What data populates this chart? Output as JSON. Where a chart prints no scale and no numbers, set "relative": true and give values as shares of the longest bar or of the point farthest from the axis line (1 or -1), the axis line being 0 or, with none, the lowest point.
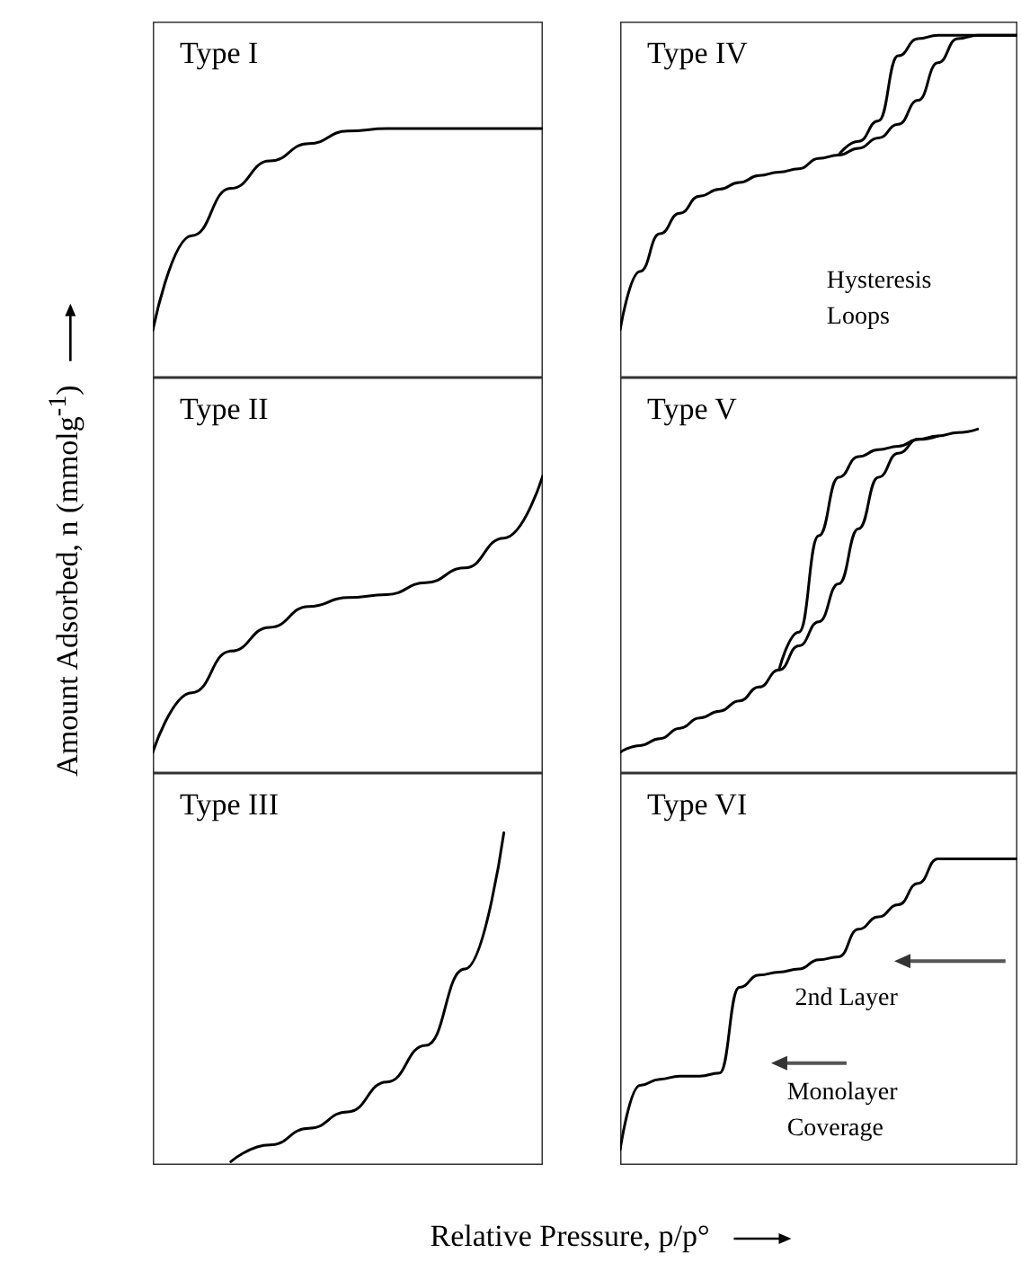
{
  "chart_data": [
    {
      "type": "line",
      "title": "Type I",
      "ylabel": "Amount Adsorbed, n (mmolg$^{-1}$)",
      "relative": true,
      "categories": [
        null,
        null,
        null,
        null,
        null,
        null,
        null,
        null,
        null,
        null,
        null
      ],
      "series": [
        {
          "color": "#000000",
          "values": [
            0.19,
            0.57,
            0.76,
            0.87,
            0.94,
            0.99,
            1,
            1,
            1,
            1,
            1
          ]
        }
      ]
    },
    {
      "type": "line",
      "title": "Type IV",
      "relative": true,
      "annotations": [
        "Hysteresis Loops"
      ],
      "categories": [
        null,
        null,
        null,
        null,
        null,
        null,
        null,
        null,
        null,
        null,
        null,
        null,
        null,
        null,
        null,
        null,
        null,
        null,
        null,
        null,
        null
      ],
      "series": [
        {
          "color": "#000000",
          "values": [
            0.14,
            0.31,
            0.42,
            0.48,
            0.53,
            0.55,
            0.57,
            0.59,
            0.6,
            0.61,
            0.64,
            0.65,
            0.67,
            0.7,
            0.74,
            0.81,
            0.92,
            0.99,
            1,
            1,
            1
          ]
        },
        {
          "color": "#000000",
          "values": [
            null,
            null,
            null,
            null,
            null,
            null,
            null,
            null,
            null,
            null,
            null,
            0.65,
            0.69,
            0.75,
            0.94,
            0.99,
            1,
            1,
            1,
            1,
            1
          ]
        }
      ]
    },
    {
      "type": "line",
      "title": "Type II",
      "relative": true,
      "categories": [
        null,
        null,
        null,
        null,
        null,
        null,
        null,
        null,
        null,
        null,
        null
      ],
      "series": [
        {
          "color": "#000000",
          "values": [
            0.07,
            0.27,
            0.41,
            0.49,
            0.56,
            0.59,
            0.6,
            0.64,
            0.69,
            0.79,
            1
          ]
        }
      ]
    },
    {
      "type": "line",
      "title": "Type V",
      "relative": true,
      "categories": [
        null,
        null,
        null,
        null,
        null,
        null,
        null,
        null,
        null,
        null,
        null,
        null,
        null,
        null,
        null,
        null,
        null,
        null,
        null,
        null,
        null
      ],
      "series": [
        {
          "color": "#000000",
          "values": [
            0.06,
            0.08,
            0.1,
            0.13,
            0.16,
            0.18,
            0.21,
            0.25,
            0.3,
            0.37,
            0.44,
            0.55,
            0.71,
            0.86,
            0.93,
            0.97,
            0.98,
            0.99,
            1,
            null,
            null
          ]
        },
        {
          "color": "#000000",
          "values": [
            null,
            null,
            null,
            null,
            null,
            null,
            null,
            null,
            0.3,
            0.41,
            0.69,
            0.86,
            0.92,
            0.94,
            0.95,
            0.97,
            0.98,
            null,
            null,
            null,
            null
          ]
        }
      ]
    },
    {
      "type": "line",
      "title": "Type III",
      "xlabel": "Relative Pressure, p/p°",
      "relative": true,
      "categories": [
        null,
        null,
        null,
        null,
        null,
        null,
        null,
        null,
        null,
        null,
        null
      ],
      "series": [
        {
          "color": "#000000",
          "values": [
            null,
            null,
            0.01,
            0.06,
            0.11,
            0.16,
            0.25,
            0.36,
            0.59,
            1,
            null
          ]
        }
      ]
    },
    {
      "type": "line",
      "title": "Type VI",
      "relative": true,
      "annotations": [
        "2nd Layer",
        "Monolayer Coverage"
      ],
      "categories": [
        null,
        null,
        null,
        null,
        null,
        null,
        null,
        null,
        null,
        null,
        null,
        null,
        null,
        null,
        null,
        null,
        null,
        null,
        null,
        null,
        null
      ],
      "series": [
        {
          "color": "#000000",
          "values": [
            0.05,
            0.26,
            0.28,
            0.29,
            0.29,
            0.3,
            0.58,
            0.62,
            0.63,
            0.64,
            0.67,
            0.68,
            0.77,
            0.81,
            0.85,
            0.92,
            1,
            1,
            1,
            1,
            1
          ]
        }
      ]
    }
  ]
}
